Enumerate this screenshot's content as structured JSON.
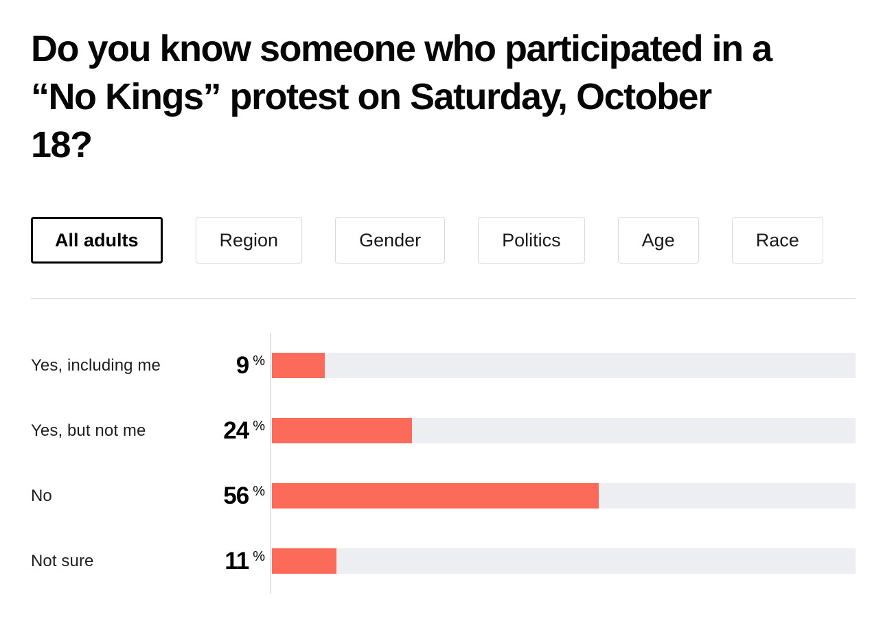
{
  "page": {
    "heading": "Do you know someone who participated in a\n“No Kings” protest on Saturday, October\n18?"
  },
  "tabs": [
    {
      "label": "All adults",
      "active": true
    },
    {
      "label": "Region",
      "active": false
    },
    {
      "label": "Gender",
      "active": false
    },
    {
      "label": "Politics",
      "active": false
    },
    {
      "label": "Age",
      "active": false
    },
    {
      "label": "Race",
      "active": false
    }
  ],
  "chart_data": {
    "type": "bar",
    "orientation": "horizontal",
    "title": "Do you know someone who participated in a “No Kings” protest on Saturday, October 18?",
    "categories": [
      "Yes, including me",
      "Yes, but not me",
      "No",
      "Not sure"
    ],
    "values": [
      9,
      24,
      56,
      11
    ],
    "unit": "%",
    "xlim": [
      0,
      100
    ],
    "grid": false,
    "legend": false,
    "colors": {
      "bar": "#fc6a5a",
      "track": "#edeef2",
      "axis": "#e3e3e8",
      "heading_text": "#060606",
      "label_text": "#1c1e21"
    }
  }
}
